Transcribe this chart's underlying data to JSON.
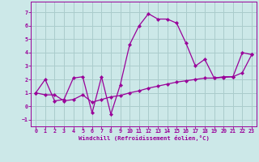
{
  "xlabel": "Windchill (Refroidissement éolien,°C)",
  "background_color": "#cce8e8",
  "grid_color": "#aacccc",
  "line_color": "#990099",
  "xlim": [
    -0.5,
    23.5
  ],
  "ylim": [
    -1.5,
    7.8
  ],
  "xticks": [
    0,
    1,
    2,
    3,
    4,
    5,
    6,
    7,
    8,
    9,
    10,
    11,
    12,
    13,
    14,
    15,
    16,
    17,
    18,
    19,
    20,
    21,
    22,
    23
  ],
  "yticks": [
    -1,
    0,
    1,
    2,
    3,
    4,
    5,
    6,
    7
  ],
  "line1_x": [
    0,
    1,
    2,
    3,
    4,
    5,
    6,
    7,
    8,
    9,
    10,
    11,
    12,
    13,
    14,
    15,
    16,
    17,
    18,
    19,
    20,
    21,
    22,
    23
  ],
  "line1_y": [
    1.0,
    2.0,
    0.4,
    0.5,
    2.1,
    2.2,
    -0.5,
    2.2,
    -0.6,
    1.6,
    4.6,
    6.0,
    6.9,
    6.5,
    6.5,
    6.2,
    4.7,
    3.0,
    3.5,
    2.1,
    2.2,
    2.2,
    4.0,
    3.85
  ],
  "line2_x": [
    0,
    1,
    2,
    3,
    4,
    5,
    6,
    7,
    8,
    9,
    10,
    11,
    12,
    13,
    14,
    15,
    16,
    17,
    18,
    19,
    20,
    21,
    22,
    23
  ],
  "line2_y": [
    1.0,
    0.85,
    0.85,
    0.4,
    0.5,
    0.85,
    0.3,
    0.5,
    0.7,
    0.8,
    1.0,
    1.15,
    1.35,
    1.5,
    1.65,
    1.8,
    1.9,
    2.0,
    2.1,
    2.1,
    2.15,
    2.2,
    2.5,
    3.85
  ]
}
